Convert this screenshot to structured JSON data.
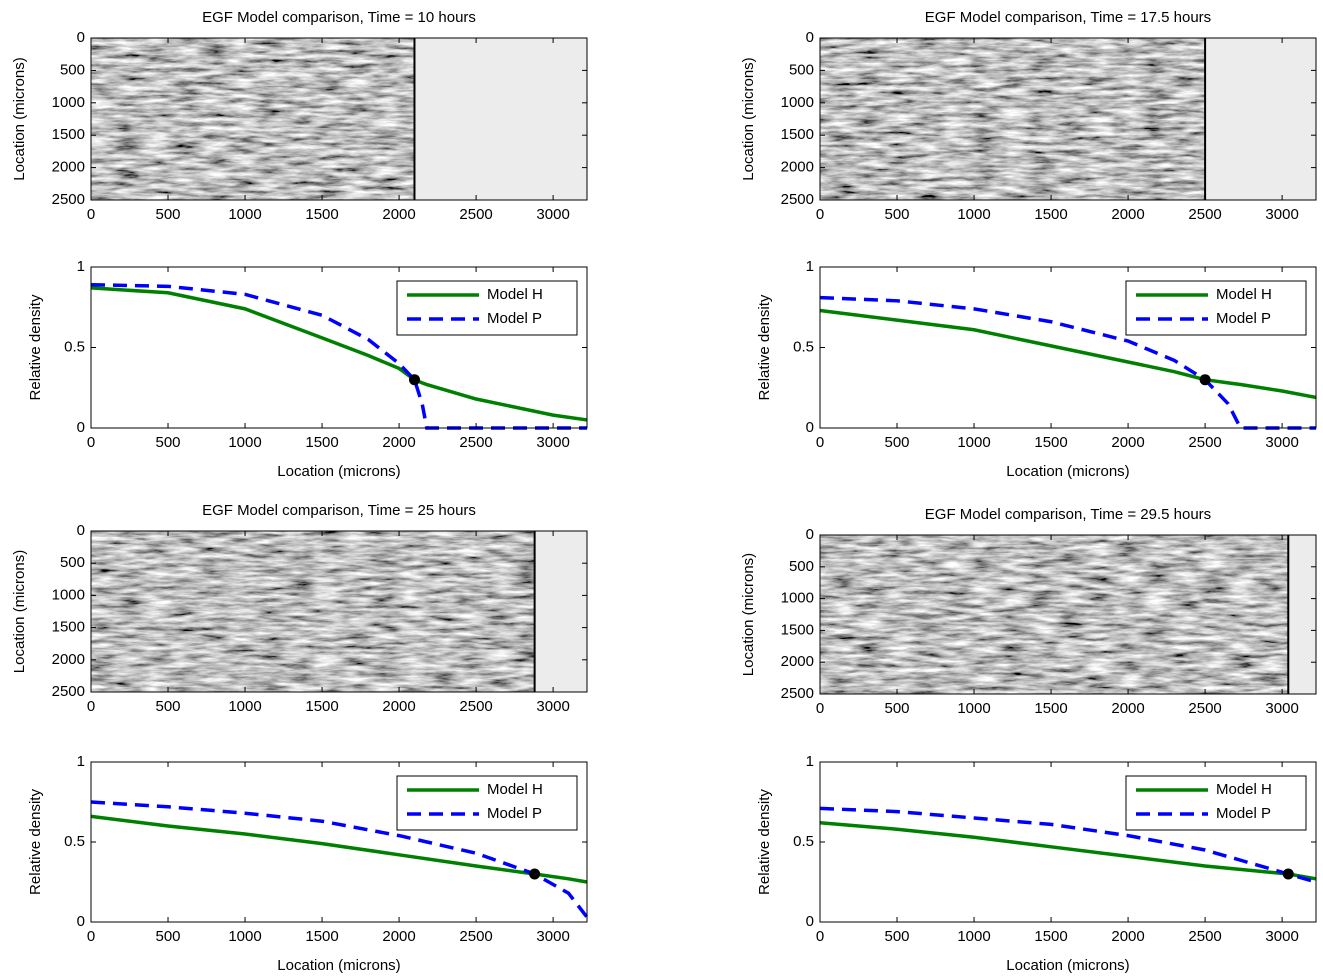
{
  "chart_data": [
    {
      "type": "image",
      "title": "EGF Model comparison, Time = 10 hours",
      "ylabel": "Location (microns)",
      "xlim": [
        0,
        3220
      ],
      "ylim": [
        0,
        2500
      ],
      "yreverse": true,
      "xticks": [
        0,
        500,
        1000,
        1500,
        2000,
        2500,
        3000
      ],
      "yticks": [
        0,
        500,
        1000,
        1500,
        2000,
        2500
      ],
      "front": 2100
    },
    {
      "type": "line",
      "xlabel": "Location (microns)",
      "ylabel": "Relative density",
      "xlim": [
        0,
        3220
      ],
      "ylim": [
        0,
        1
      ],
      "xticks": [
        0,
        500,
        1000,
        1500,
        2000,
        2500,
        3000
      ],
      "yticks": [
        0,
        0.5,
        1
      ],
      "legend": "upper right",
      "x": [
        0,
        500,
        1000,
        1500,
        1800,
        2000,
        2100,
        2150,
        2180,
        2500,
        3000,
        3220
      ],
      "series": [
        {
          "name": "Model H",
          "color": "#008000",
          "linestyle": "-",
          "values": [
            0.87,
            0.84,
            0.74,
            0.56,
            0.45,
            0.37,
            0.3,
            0.28,
            0.27,
            0.18,
            0.08,
            0.05
          ]
        },
        {
          "name": "Model P",
          "color": "#0000ff",
          "linestyle": "--",
          "values": [
            0.89,
            0.88,
            0.83,
            0.7,
            0.55,
            0.4,
            0.3,
            0.15,
            0,
            0,
            0,
            0
          ]
        }
      ],
      "marker": {
        "x": 2100,
        "y": 0.3
      }
    },
    {
      "type": "image",
      "title": "EGF Model comparison, Time = 17.5 hours",
      "ylabel": "Location (microns)",
      "xlim": [
        0,
        3220
      ],
      "ylim": [
        0,
        2500
      ],
      "yreverse": true,
      "xticks": [
        0,
        500,
        1000,
        1500,
        2000,
        2500,
        3000
      ],
      "yticks": [
        0,
        500,
        1000,
        1500,
        2000,
        2500
      ],
      "front": 2500
    },
    {
      "type": "line",
      "xlabel": "Location (microns)",
      "ylabel": "Relative density",
      "xlim": [
        0,
        3220
      ],
      "ylim": [
        0,
        1
      ],
      "xticks": [
        0,
        500,
        1000,
        1500,
        2000,
        2500,
        3000
      ],
      "yticks": [
        0,
        0.5,
        1
      ],
      "legend": "upper right",
      "x": [
        0,
        500,
        1000,
        1500,
        2000,
        2300,
        2500,
        2650,
        2730,
        3000,
        3220
      ],
      "series": [
        {
          "name": "Model H",
          "color": "#008000",
          "linestyle": "-",
          "values": [
            0.73,
            0.67,
            0.61,
            0.51,
            0.41,
            0.35,
            0.3,
            0.28,
            0.27,
            0.23,
            0.19
          ]
        },
        {
          "name": "Model P",
          "color": "#0000ff",
          "linestyle": "--",
          "values": [
            0.81,
            0.79,
            0.74,
            0.66,
            0.54,
            0.42,
            0.3,
            0.15,
            0,
            0,
            0
          ]
        }
      ],
      "marker": {
        "x": 2500,
        "y": 0.3
      }
    },
    {
      "type": "image",
      "title": "EGF Model comparison, Time = 25 hours",
      "ylabel": "Location (microns)",
      "xlim": [
        0,
        3220
      ],
      "ylim": [
        0,
        2500
      ],
      "yreverse": true,
      "xticks": [
        0,
        500,
        1000,
        1500,
        2000,
        2500,
        3000
      ],
      "yticks": [
        0,
        500,
        1000,
        1500,
        2000,
        2500
      ],
      "front": 2880
    },
    {
      "type": "line",
      "xlabel": "Location (microns)",
      "ylabel": "Relative density",
      "xlim": [
        0,
        3220
      ],
      "ylim": [
        0,
        1
      ],
      "xticks": [
        0,
        500,
        1000,
        1500,
        2000,
        2500,
        3000
      ],
      "yticks": [
        0,
        0.5,
        1
      ],
      "legend": "upper right",
      "x": [
        0,
        500,
        1000,
        1500,
        2000,
        2500,
        2880,
        3100,
        3220
      ],
      "series": [
        {
          "name": "Model H",
          "color": "#008000",
          "linestyle": "-",
          "values": [
            0.66,
            0.6,
            0.55,
            0.49,
            0.42,
            0.35,
            0.3,
            0.27,
            0.25
          ]
        },
        {
          "name": "Model P",
          "color": "#0000ff",
          "linestyle": "--",
          "values": [
            0.75,
            0.72,
            0.68,
            0.63,
            0.54,
            0.43,
            0.3,
            0.18,
            0.03
          ]
        }
      ],
      "marker": {
        "x": 2880,
        "y": 0.3
      }
    },
    {
      "type": "image",
      "title": "EGF Model comparison, Time = 29.5 hours",
      "ylabel": "Location (microns)",
      "xlim": [
        0,
        3220
      ],
      "ylim": [
        0,
        2500
      ],
      "yreverse": true,
      "xticks": [
        0,
        500,
        1000,
        1500,
        2000,
        2500,
        3000
      ],
      "yticks": [
        0,
        500,
        1000,
        1500,
        2000,
        2500
      ],
      "front": 3040
    },
    {
      "type": "line",
      "xlabel": "Location (microns)",
      "ylabel": "Relative density",
      "xlim": [
        0,
        3220
      ],
      "ylim": [
        0,
        1
      ],
      "xticks": [
        0,
        500,
        1000,
        1500,
        2000,
        2500,
        3000
      ],
      "yticks": [
        0,
        0.5,
        1
      ],
      "legend": "upper right",
      "x": [
        0,
        500,
        1000,
        1500,
        2000,
        2500,
        3040,
        3220
      ],
      "series": [
        {
          "name": "Model H",
          "color": "#008000",
          "linestyle": "-",
          "values": [
            0.62,
            0.58,
            0.53,
            0.47,
            0.41,
            0.35,
            0.3,
            0.27
          ]
        },
        {
          "name": "Model P",
          "color": "#0000ff",
          "linestyle": "--",
          "values": [
            0.71,
            0.69,
            0.65,
            0.61,
            0.54,
            0.45,
            0.3,
            0.25
          ]
        }
      ],
      "marker": {
        "x": 3040,
        "y": 0.3
      }
    }
  ]
}
